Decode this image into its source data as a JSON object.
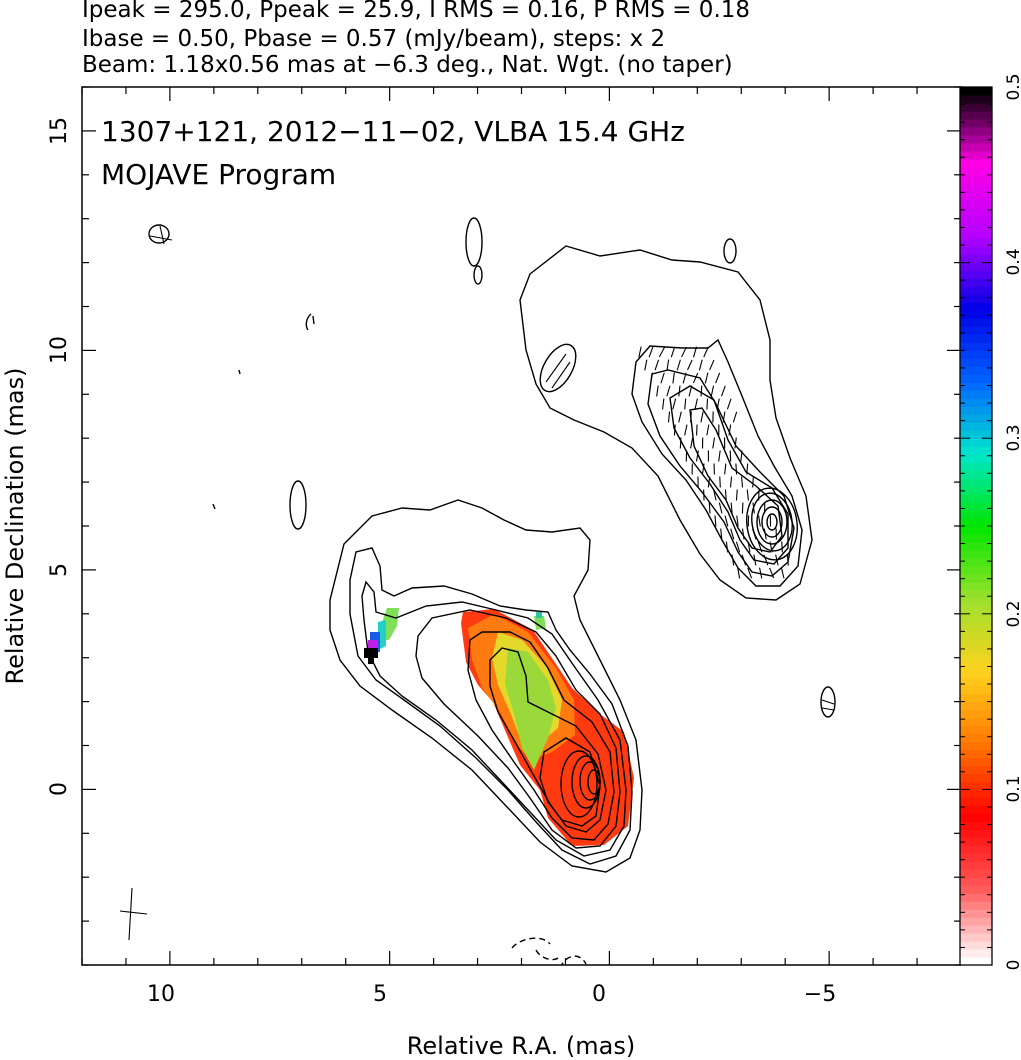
{
  "header": {
    "line1": "Ipeak = 295.0, Ppeak = 25.9, I RMS = 0.16, P RMS = 0.18",
    "line2": "Ibase = 0.50, Pbase = 0.57 (mJy/beam), steps: x 2",
    "line3": "Beam: 1.18x0.56 mas at −6.3 deg., Nat. Wgt. (no taper)"
  },
  "chart_data": {
    "type": "heatmap",
    "title": "1307+121, 2012−11−02, VLBA 15.4 GHz",
    "subtitle": "MOJAVE Program",
    "xlabel": "Relative R.A. (mas)",
    "ylabel": "Relative Declination (mas)",
    "xlim": [
      12,
      -8
    ],
    "ylim": [
      -4,
      16
    ],
    "x_ticks": [
      "10",
      "5",
      "0",
      "−5"
    ],
    "y_ticks": [
      "0",
      "5",
      "10",
      "15"
    ],
    "colorbar": {
      "range": [
        0,
        0.5
      ],
      "ticks": [
        "0",
        "0.1",
        "0.2",
        "0.3",
        "0.4",
        "0.5"
      ],
      "colors": [
        "#ffffff",
        "#ff5a5a",
        "#ff0000",
        "#ff7700",
        "#ffd21e",
        "#9be12d",
        "#00e600",
        "#00e6cd",
        "#0064ff",
        "#0000e6",
        "#b400ff",
        "#ff00e6",
        "#000000"
      ]
    },
    "contour_levels_mjy_per_beam": [
      -0.5,
      0.5,
      1,
      2,
      4,
      8,
      16,
      32,
      64,
      128,
      256
    ],
    "intensity_peak_mas": [
      0,
      0.1
    ],
    "secondary_component_mas": [
      -3.9,
      6.2
    ],
    "fractional_polarization_samples": [
      {
        "x": 0.0,
        "y": 0.0,
        "v": 0.07
      },
      {
        "x": -0.3,
        "y": 0.6,
        "v": 0.09
      },
      {
        "x": 0.5,
        "y": 1.0,
        "v": 0.11
      },
      {
        "x": 1.0,
        "y": 1.6,
        "v": 0.15
      },
      {
        "x": 1.4,
        "y": 2.4,
        "v": 0.19
      },
      {
        "x": 2.0,
        "y": 2.8,
        "v": 0.21
      },
      {
        "x": 2.7,
        "y": 3.2,
        "v": 0.12
      },
      {
        "x": 1.3,
        "y": 3.9,
        "v": 0.25
      },
      {
        "x": 4.9,
        "y": 3.7,
        "v": 0.26
      },
      {
        "x": 5.1,
        "y": 3.4,
        "v": 0.38
      },
      {
        "x": 5.15,
        "y": 3.1,
        "v": 0.5
      }
    ]
  }
}
